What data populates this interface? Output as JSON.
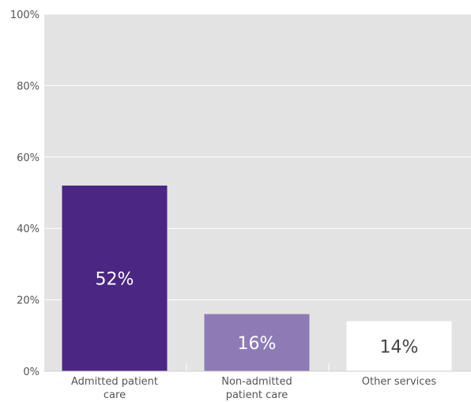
{
  "chart_data": {
    "type": "bar",
    "categories": [
      [
        "Admitted patient",
        "care"
      ],
      [
        "Non-admitted",
        "patient care"
      ],
      [
        "Other services"
      ]
    ],
    "values": [
      52,
      16,
      14
    ],
    "data_labels": [
      "52%",
      "16%",
      "14%"
    ],
    "bar_colors": [
      "#4b2683",
      "#8e7bb5",
      "#ffffff"
    ],
    "data_label_colors": [
      "#ffffff",
      "#ffffff",
      "#444444"
    ],
    "ylim": [
      0,
      100
    ],
    "yticks": [
      0,
      20,
      40,
      60,
      80,
      100
    ],
    "ytick_labels": [
      "0%",
      "20%",
      "40%",
      "60%",
      "80%",
      "100%"
    ],
    "plot_background": "#e3e3e3",
    "grid": true,
    "title": "",
    "xlabel": "",
    "ylabel": ""
  }
}
